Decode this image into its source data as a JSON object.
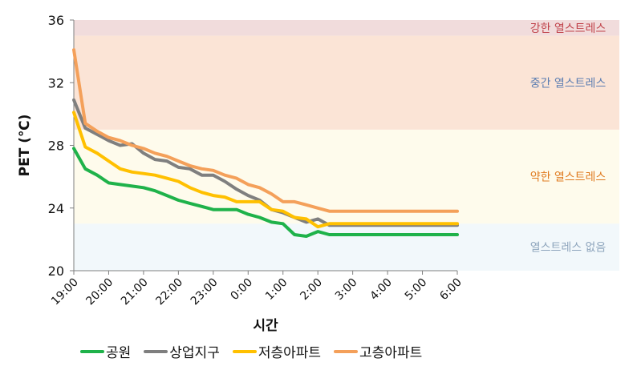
{
  "chart_data": {
    "type": "line",
    "xlabel": "시간",
    "ylabel": "PET (℃)",
    "ylim": [
      20,
      36
    ],
    "yticks": [
      20,
      24,
      28,
      32,
      36
    ],
    "x_tick_labels": [
      "19:00",
      "20:00",
      "21:00",
      "22:00",
      "23:00",
      "0:00",
      "1:00",
      "2:00",
      "3:00",
      "4:00",
      "5:00",
      "6:00"
    ],
    "zones": [
      {
        "label": "강한 열스트레스",
        "from": 35,
        "to": 36,
        "fill": "#f1dcdc",
        "text_color": "#c0424a"
      },
      {
        "label": "중간 열스트레스",
        "from": 29,
        "to": 35,
        "fill": "#fbe4d6",
        "text_color": "#5b7db1"
      },
      {
        "label": "약한 열스트레스",
        "from": 23,
        "to": 29,
        "fill": "#fefbec",
        "text_color": "#e07b20"
      },
      {
        "label": "열스트레스 없음",
        "from": 20,
        "to": 23,
        "fill": "#f2f8fb",
        "text_color": "#8fa6bd"
      }
    ],
    "x_hours": [
      0,
      0.33,
      0.67,
      1,
      1.33,
      1.67,
      2,
      2.33,
      2.67,
      3,
      3.33,
      3.67,
      4,
      4.33,
      4.67,
      5,
      5.33,
      5.67,
      6,
      6.33,
      6.67,
      7,
      7.33,
      7.67,
      8,
      8.33,
      8.67,
      9,
      9.33,
      9.67,
      10,
      10.33,
      10.67,
      11,
      11.33,
      11.67
    ],
    "series": [
      {
        "name": "공원",
        "color": "#1fb24a",
        "values": [
          27.8,
          26.5,
          26.1,
          25.6,
          25.5,
          25.4,
          25.3,
          25.1,
          24.8,
          24.5,
          24.3,
          24.1,
          23.9,
          23.9,
          23.9,
          23.6,
          23.4,
          23.1,
          23.0,
          22.3,
          22.2,
          22.5,
          22.3,
          22.3,
          22.3,
          22.3,
          22.3,
          22.3,
          22.3,
          22.3,
          22.3,
          22.3,
          22.3,
          22.3,
          22.3,
          22.3
        ]
      },
      {
        "name": "상업지구",
        "color": "#7f7f7f",
        "values": [
          30.9,
          29.1,
          28.7,
          28.3,
          28.0,
          28.1,
          27.5,
          27.1,
          27.0,
          26.6,
          26.5,
          26.1,
          26.1,
          25.7,
          25.2,
          24.8,
          24.5,
          23.9,
          23.7,
          23.4,
          23.1,
          23.3,
          22.9,
          22.9,
          22.9,
          22.9,
          22.9,
          22.9,
          22.9,
          22.9,
          22.9,
          22.9,
          22.9,
          22.9,
          22.9,
          22.9
        ]
      },
      {
        "name": "저층아파트",
        "color": "#ffc000",
        "values": [
          30.1,
          27.9,
          27.5,
          27.0,
          26.5,
          26.3,
          26.2,
          26.1,
          25.9,
          25.7,
          25.3,
          25.0,
          24.8,
          24.7,
          24.4,
          24.4,
          24.4,
          23.9,
          23.8,
          23.4,
          23.3,
          22.8,
          23.0,
          23.0,
          23.0,
          23.0,
          23.0,
          23.0,
          23.0,
          23.0,
          23.0,
          23.0,
          23.0,
          23.0,
          23.0,
          23.0
        ]
      },
      {
        "name": "고층아파트",
        "color": "#f4a05a",
        "values": [
          34.1,
          29.4,
          28.9,
          28.5,
          28.3,
          28.0,
          27.8,
          27.5,
          27.3,
          27.0,
          26.7,
          26.5,
          26.4,
          26.1,
          25.9,
          25.5,
          25.3,
          24.9,
          24.4,
          24.4,
          24.2,
          24.0,
          23.8,
          23.8,
          23.8,
          23.8,
          23.8,
          23.8,
          23.8,
          23.8,
          23.8,
          23.8,
          23.8,
          23.8,
          23.8,
          23.8
        ]
      }
    ]
  }
}
